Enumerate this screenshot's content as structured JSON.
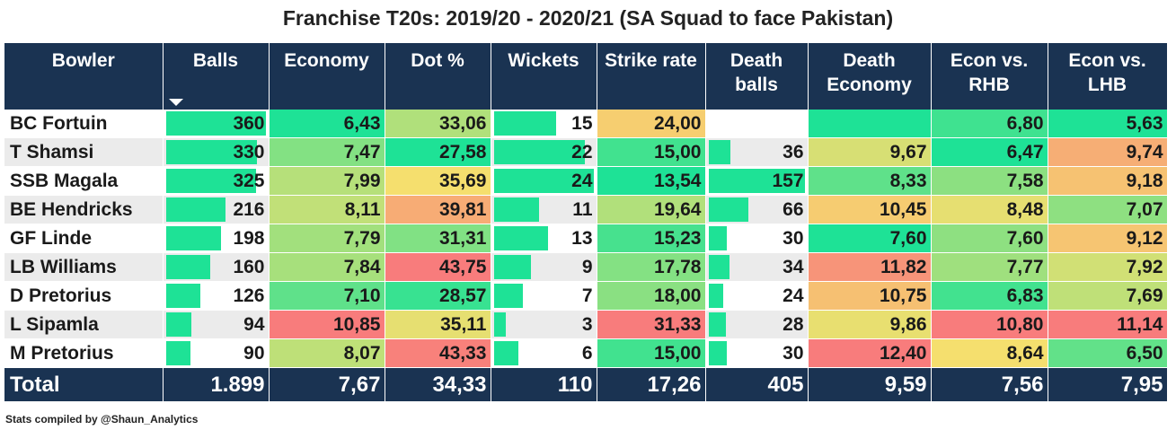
{
  "title": "Franchise T20s: 2019/20 - 2020/21 (SA Squad to face Pakistan)",
  "footer": "Stats compiled by @Shaun_Analytics",
  "colors": {
    "header_bg": "#1a3352",
    "bar": "#1ee296",
    "scale_good": "#1ee296",
    "scale_mid": "#f5df6e",
    "scale_bad": "#f87c7c"
  },
  "columns": [
    {
      "key": "bowler",
      "label": "Bowler"
    },
    {
      "key": "balls",
      "label": "Balls",
      "sorted": "desc"
    },
    {
      "key": "economy",
      "label": "Economy"
    },
    {
      "key": "dot",
      "label": "Dot %"
    },
    {
      "key": "wickets",
      "label": "Wickets"
    },
    {
      "key": "sr",
      "label": "Strike rate"
    },
    {
      "key": "death_balls",
      "label": "Death balls"
    },
    {
      "key": "death_econ",
      "label": "Death Economy"
    },
    {
      "key": "econ_rhb",
      "label": "Econ vs. RHB"
    },
    {
      "key": "econ_lhb",
      "label": "Econ vs. LHB"
    }
  ],
  "rows": [
    {
      "bowler": "BC Fortuin",
      "balls": "360",
      "economy": "6,43",
      "dot": "33,06",
      "wickets": "15",
      "sr": "24,00",
      "death_balls": "",
      "death_econ": "",
      "econ_rhb": "6,80",
      "econ_lhb": "5,63"
    },
    {
      "bowler": "T Shamsi",
      "balls": "330",
      "economy": "7,47",
      "dot": "27,58",
      "wickets": "22",
      "sr": "15,00",
      "death_balls": "36",
      "death_econ": "9,67",
      "econ_rhb": "6,47",
      "econ_lhb": "9,74"
    },
    {
      "bowler": "SSB Magala",
      "balls": "325",
      "economy": "7,99",
      "dot": "35,69",
      "wickets": "24",
      "sr": "13,54",
      "death_balls": "157",
      "death_econ": "8,33",
      "econ_rhb": "7,58",
      "econ_lhb": "9,18"
    },
    {
      "bowler": "BE Hendricks",
      "balls": "216",
      "economy": "8,11",
      "dot": "39,81",
      "wickets": "11",
      "sr": "19,64",
      "death_balls": "66",
      "death_econ": "10,45",
      "econ_rhb": "8,48",
      "econ_lhb": "7,07"
    },
    {
      "bowler": "GF Linde",
      "balls": "198",
      "economy": "7,79",
      "dot": "31,31",
      "wickets": "13",
      "sr": "15,23",
      "death_balls": "30",
      "death_econ": "7,60",
      "econ_rhb": "7,60",
      "econ_lhb": "9,12"
    },
    {
      "bowler": "LB Williams",
      "balls": "160",
      "economy": "7,84",
      "dot": "43,75",
      "wickets": "9",
      "sr": "17,78",
      "death_balls": "34",
      "death_econ": "11,82",
      "econ_rhb": "7,77",
      "econ_lhb": "7,92"
    },
    {
      "bowler": "D Pretorius",
      "balls": "126",
      "economy": "7,10",
      "dot": "28,57",
      "wickets": "7",
      "sr": "18,00",
      "death_balls": "24",
      "death_econ": "10,75",
      "econ_rhb": "6,83",
      "econ_lhb": "7,69"
    },
    {
      "bowler": "L Sipamla",
      "balls": "94",
      "economy": "10,85",
      "dot": "35,11",
      "wickets": "3",
      "sr": "31,33",
      "death_balls": "28",
      "death_econ": "9,86",
      "econ_rhb": "10,80",
      "econ_lhb": "11,14"
    },
    {
      "bowler": "M Pretorius",
      "balls": "90",
      "economy": "8,07",
      "dot": "43,33",
      "wickets": "6",
      "sr": "15,00",
      "death_balls": "30",
      "death_econ": "12,40",
      "econ_rhb": "8,64",
      "econ_lhb": "6,50"
    }
  ],
  "total": {
    "bowler": "Total",
    "balls": "1.899",
    "economy": "7,67",
    "dot": "34,33",
    "wickets": "110",
    "sr": "17,26",
    "death_balls": "405",
    "death_econ": "9,59",
    "econ_rhb": "7,56",
    "econ_lhb": "7,95"
  }
}
